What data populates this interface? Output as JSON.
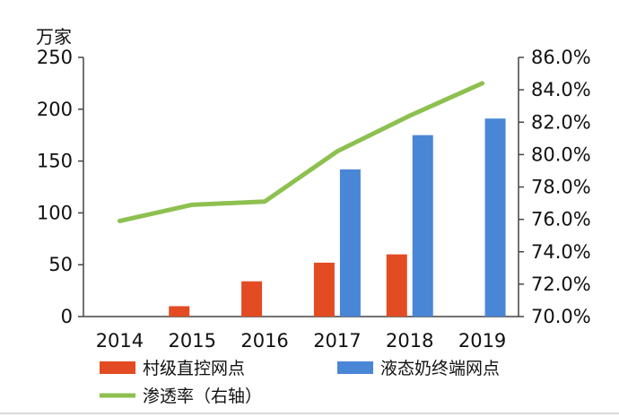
{
  "chart_data": {
    "type": "bar",
    "title": "",
    "xlabel": "",
    "ylabel": "万家",
    "categories": [
      "2014",
      "2015",
      "2016",
      "2017",
      "2018",
      "2019"
    ],
    "ylim": [
      0,
      250
    ],
    "yticks": [
      "0",
      "50",
      "100",
      "150",
      "200",
      "250"
    ],
    "y2lim": [
      70.0,
      86.0
    ],
    "y2ticks": [
      "70.0%",
      "72.0%",
      "74.0%",
      "76.0%",
      "78.0%",
      "80.0%",
      "82.0%",
      "84.0%",
      "86.0%"
    ],
    "grid": false,
    "legend_position": "bottom",
    "series": [
      {
        "name": "村级直控网点",
        "type": "bar",
        "axis": "left",
        "color": "#e34b22",
        "values": [
          null,
          10,
          34,
          52,
          60,
          null
        ]
      },
      {
        "name": "液态奶终端网点",
        "type": "bar",
        "axis": "left",
        "color": "#4a86d6",
        "values": [
          null,
          null,
          null,
          142,
          175,
          191
        ]
      },
      {
        "name": "渗透率（右轴）",
        "type": "line",
        "axis": "right",
        "color": "#8dc04f",
        "values": [
          75.9,
          76.9,
          77.1,
          80.2,
          82.4,
          84.4
        ]
      }
    ]
  }
}
